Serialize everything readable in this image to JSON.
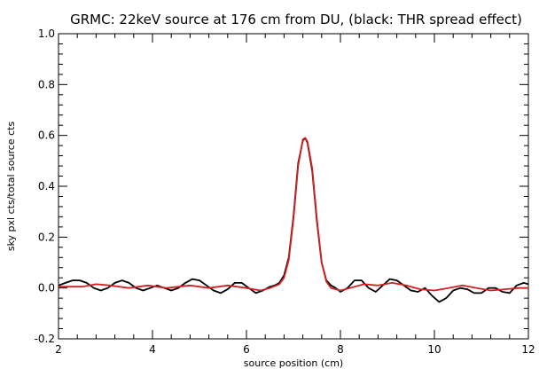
{
  "chart_data": {
    "type": "line",
    "title": "GRMC: 22keV source at 176 cm from DU, (black: THR spread effect)",
    "xlabel": "source position (cm)",
    "ylabel": "sky pxl cts/total source cts",
    "xlim": [
      2,
      12
    ],
    "ylim": [
      -0.2,
      1.0
    ],
    "x_ticks": [
      "2",
      "4",
      "6",
      "8",
      "10",
      "12"
    ],
    "y_ticks": [
      "-0.2",
      "0.0",
      "0.2",
      "0.4",
      "0.6",
      "0.8",
      "1.0"
    ],
    "grid": false,
    "series": [
      {
        "color": "#000000",
        "points": [
          [
            2.0,
            0.01
          ],
          [
            2.15,
            0.02
          ],
          [
            2.3,
            0.03
          ],
          [
            2.45,
            0.03
          ],
          [
            2.6,
            0.02
          ],
          [
            2.75,
            0.0
          ],
          [
            2.9,
            -0.01
          ],
          [
            3.05,
            0.0
          ],
          [
            3.2,
            0.02
          ],
          [
            3.35,
            0.03
          ],
          [
            3.5,
            0.02
          ],
          [
            3.65,
            0.0
          ],
          [
            3.8,
            -0.01
          ],
          [
            3.95,
            0.0
          ],
          [
            4.1,
            0.01
          ],
          [
            4.25,
            0.0
          ],
          [
            4.4,
            -0.01
          ],
          [
            4.55,
            0.0
          ],
          [
            4.7,
            0.02
          ],
          [
            4.85,
            0.035
          ],
          [
            5.0,
            0.03
          ],
          [
            5.15,
            0.01
          ],
          [
            5.3,
            -0.01
          ],
          [
            5.45,
            -0.02
          ],
          [
            5.6,
            -0.005
          ],
          [
            5.75,
            0.02
          ],
          [
            5.9,
            0.02
          ],
          [
            6.05,
            0.0
          ],
          [
            6.2,
            -0.02
          ],
          [
            6.35,
            -0.01
          ],
          [
            6.5,
            0.005
          ],
          [
            6.6,
            0.01
          ],
          [
            6.7,
            0.02
          ],
          [
            6.8,
            0.05
          ],
          [
            6.9,
            0.12
          ],
          [
            7.0,
            0.28
          ],
          [
            7.1,
            0.49
          ],
          [
            7.2,
            0.58
          ],
          [
            7.25,
            0.59
          ],
          [
            7.3,
            0.57
          ],
          [
            7.4,
            0.46
          ],
          [
            7.5,
            0.26
          ],
          [
            7.6,
            0.1
          ],
          [
            7.7,
            0.03
          ],
          [
            7.8,
            0.01
          ],
          [
            7.9,
            0.0
          ],
          [
            8.0,
            -0.015
          ],
          [
            8.15,
            0.0
          ],
          [
            8.3,
            0.03
          ],
          [
            8.45,
            0.03
          ],
          [
            8.6,
            0.0
          ],
          [
            8.75,
            -0.015
          ],
          [
            8.9,
            0.01
          ],
          [
            9.05,
            0.035
          ],
          [
            9.2,
            0.03
          ],
          [
            9.35,
            0.01
          ],
          [
            9.5,
            -0.01
          ],
          [
            9.65,
            -0.015
          ],
          [
            9.8,
            0.0
          ],
          [
            9.95,
            -0.03
          ],
          [
            10.1,
            -0.055
          ],
          [
            10.25,
            -0.04
          ],
          [
            10.4,
            -0.01
          ],
          [
            10.55,
            0.0
          ],
          [
            10.7,
            -0.005
          ],
          [
            10.85,
            -0.02
          ],
          [
            11.0,
            -0.02
          ],
          [
            11.15,
            0.0
          ],
          [
            11.3,
            0.0
          ],
          [
            11.45,
            -0.015
          ],
          [
            11.6,
            -0.02
          ],
          [
            11.75,
            0.01
          ],
          [
            11.9,
            0.02
          ],
          [
            12.0,
            0.015
          ]
        ]
      },
      {
        "color": "#d42020",
        "points": [
          [
            2.0,
            0.005
          ],
          [
            2.5,
            0.005
          ],
          [
            2.8,
            0.015
          ],
          [
            3.1,
            0.01
          ],
          [
            3.5,
            0.0
          ],
          [
            3.9,
            0.01
          ],
          [
            4.3,
            0.0
          ],
          [
            4.8,
            0.01
          ],
          [
            5.2,
            0.0
          ],
          [
            5.6,
            0.01
          ],
          [
            6.0,
            0.0
          ],
          [
            6.3,
            -0.01
          ],
          [
            6.5,
            0.0
          ],
          [
            6.7,
            0.015
          ],
          [
            6.8,
            0.04
          ],
          [
            6.9,
            0.11
          ],
          [
            7.0,
            0.27
          ],
          [
            7.1,
            0.48
          ],
          [
            7.2,
            0.585
          ],
          [
            7.25,
            0.59
          ],
          [
            7.3,
            0.575
          ],
          [
            7.4,
            0.47
          ],
          [
            7.5,
            0.27
          ],
          [
            7.6,
            0.1
          ],
          [
            7.7,
            0.025
          ],
          [
            7.8,
            0.0
          ],
          [
            8.0,
            -0.01
          ],
          [
            8.2,
            0.0
          ],
          [
            8.5,
            0.015
          ],
          [
            8.8,
            0.01
          ],
          [
            9.1,
            0.02
          ],
          [
            9.4,
            0.01
          ],
          [
            9.7,
            -0.005
          ],
          [
            10.0,
            -0.01
          ],
          [
            10.3,
            0.0
          ],
          [
            10.6,
            0.01
          ],
          [
            10.9,
            0.0
          ],
          [
            11.2,
            -0.01
          ],
          [
            11.5,
            -0.005
          ],
          [
            11.8,
            0.0
          ],
          [
            12.0,
            0.0
          ]
        ]
      }
    ]
  }
}
